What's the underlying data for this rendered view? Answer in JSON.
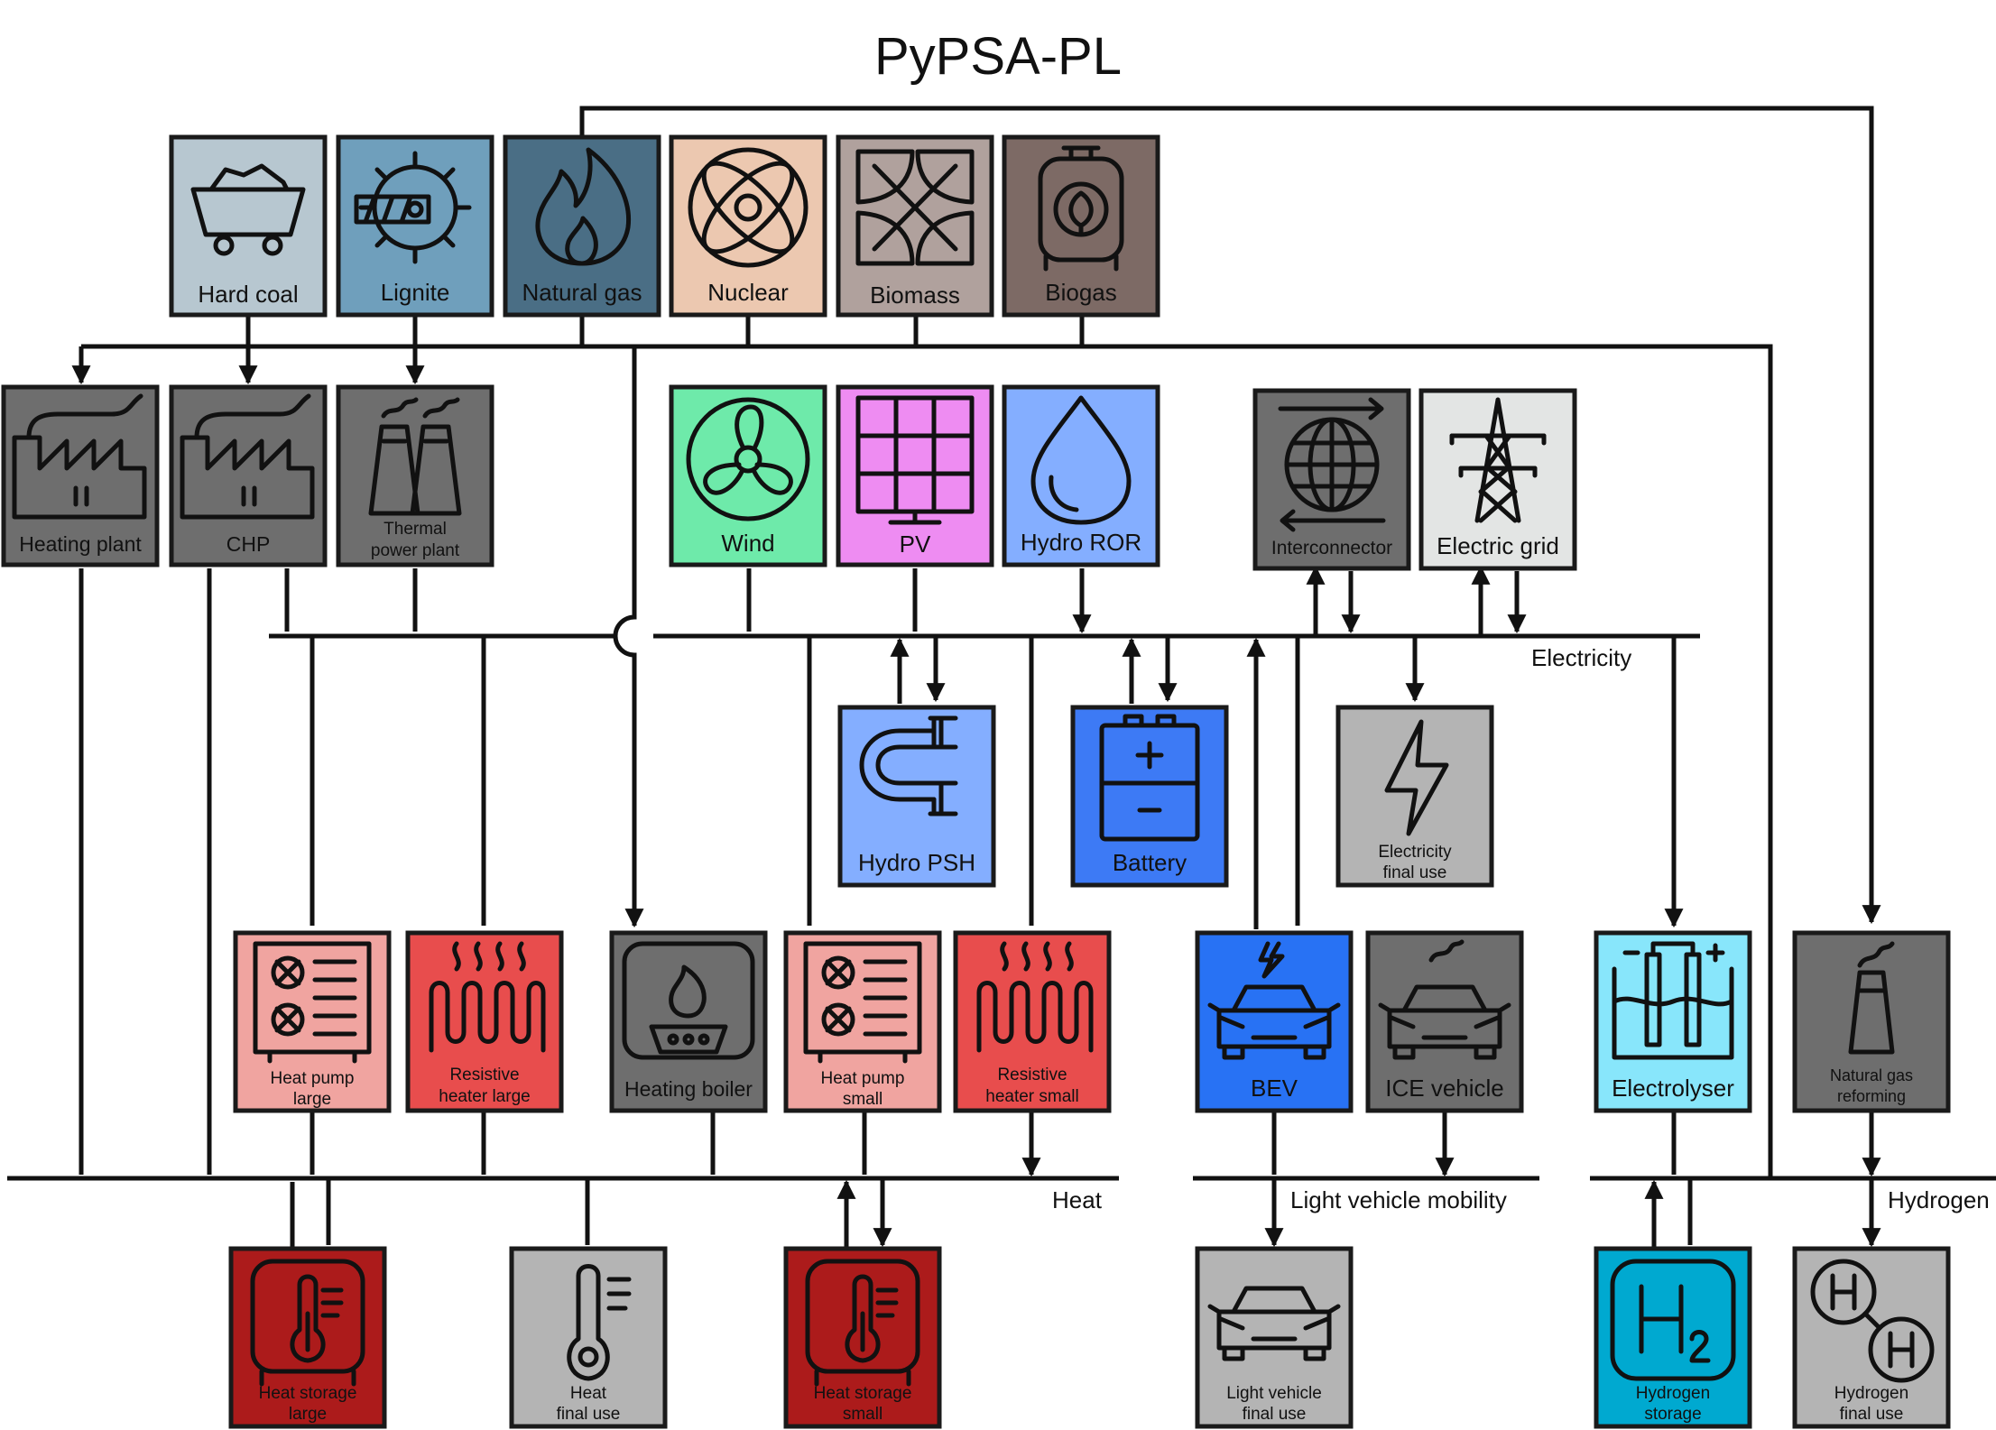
{
  "title": "PyPSA-PL",
  "buses": {
    "electricity": "Electricity",
    "heat": "Heat",
    "mobility": "Light vehicle mobility",
    "hydrogen": "Hydrogen"
  },
  "nodes": {
    "hard_coal": {
      "l1": "Hard coal",
      "color": "#b7c7d0",
      "icon": "mine-cart-icon"
    },
    "lignite": {
      "l1": "Lignite",
      "color": "#6f9fbc",
      "icon": "excavator-wheel-icon"
    },
    "natural_gas": {
      "l1": "Natural gas",
      "color": "#4a6e85",
      "icon": "flame-icon"
    },
    "nuclear": {
      "l1": "Nuclear",
      "color": "#ecc8b0",
      "icon": "atom-icon"
    },
    "biomass": {
      "l1": "Biomass",
      "color": "#b0a19d",
      "icon": "leaves-icon"
    },
    "biogas": {
      "l1": "Biogas",
      "color": "#7d6a65",
      "icon": "gas-cylinder-icon"
    },
    "heating_plant": {
      "l1": "Heating plant",
      "color": "#6e6e6e",
      "icon": "factory-icon"
    },
    "chp": {
      "l1": "CHP",
      "color": "#6e6e6e",
      "icon": "factory-icon"
    },
    "thermal": {
      "l1": "Thermal",
      "l2": "power plant",
      "color": "#6e6e6e",
      "icon": "cooling-towers-icon"
    },
    "wind": {
      "l1": "Wind",
      "color": "#6eeaaa",
      "icon": "fan-icon"
    },
    "pv": {
      "l1": "PV",
      "color": "#ee8cf2",
      "icon": "solar-panel-icon"
    },
    "hydro_ror": {
      "l1": "Hydro ROR",
      "color": "#84aeff",
      "icon": "water-drop-icon"
    },
    "interconnector": {
      "l1": "Interconnector",
      "color": "#6e6e6e",
      "icon": "globe-icon"
    },
    "electric_grid": {
      "l1": "Electric grid",
      "color": "#e3e5e4",
      "icon": "pylon-icon"
    },
    "hydro_psh": {
      "l1": "Hydro PSH",
      "color": "#84aeff",
      "icon": "pipe-icon"
    },
    "battery": {
      "l1": "Battery",
      "color": "#3d7af5",
      "icon": "battery-icon"
    },
    "elec_final": {
      "l1": "Electricity",
      "l2": "final use",
      "color": "#b4b4b4",
      "icon": "lightning-icon"
    },
    "hp_large": {
      "l1": "Heat pump",
      "l2": "large",
      "color": "#f0a4a0",
      "icon": "heat-pump-icon"
    },
    "res_large": {
      "l1": "Resistive",
      "l2": "heater large",
      "color": "#e84d4d",
      "icon": "heater-coil-icon"
    },
    "heating_boiler": {
      "l1": "Heating boiler",
      "color": "#6e6e6e",
      "icon": "stove-icon"
    },
    "hp_small": {
      "l1": "Heat pump",
      "l2": "small",
      "color": "#f0a4a0",
      "icon": "heat-pump-icon"
    },
    "res_small": {
      "l1": "Resistive",
      "l2": "heater small",
      "color": "#e84d4d",
      "icon": "heater-coil-icon"
    },
    "bev": {
      "l1": "BEV",
      "color": "#2872f4",
      "icon": "electric-car-icon"
    },
    "ice": {
      "l1": "ICE vehicle",
      "color": "#6e6e6e",
      "icon": "car-exhaust-icon"
    },
    "electrolyser": {
      "l1": "Electrolyser",
      "color": "#88e6fb",
      "icon": "electrolysis-icon"
    },
    "ng_reforming": {
      "l1": "Natural gas",
      "l2": "reforming",
      "color": "#6e6e6e",
      "icon": "chimney-icon"
    },
    "hs_large": {
      "l1": "Heat storage",
      "l2": "large",
      "color": "#ac1b1b",
      "icon": "thermometer-tank-icon"
    },
    "heat_final": {
      "l1": "Heat",
      "l2": "final use",
      "color": "#b4b4b4",
      "icon": "thermometer-icon"
    },
    "hs_small": {
      "l1": "Heat storage",
      "l2": "small",
      "color": "#ac1b1b",
      "icon": "thermometer-tank-icon"
    },
    "lv_final": {
      "l1": "Light vehicle",
      "l2": "final use",
      "color": "#b4b4b4",
      "icon": "car-icon"
    },
    "h2_storage": {
      "l1": "Hydrogen",
      "l2": "storage",
      "color": "#00a9d0",
      "icon": "h2-tank-icon"
    },
    "h2_final": {
      "l1": "Hydrogen",
      "l2": "final use",
      "color": "#b4b4b4",
      "icon": "h2-molecule-icon"
    }
  }
}
